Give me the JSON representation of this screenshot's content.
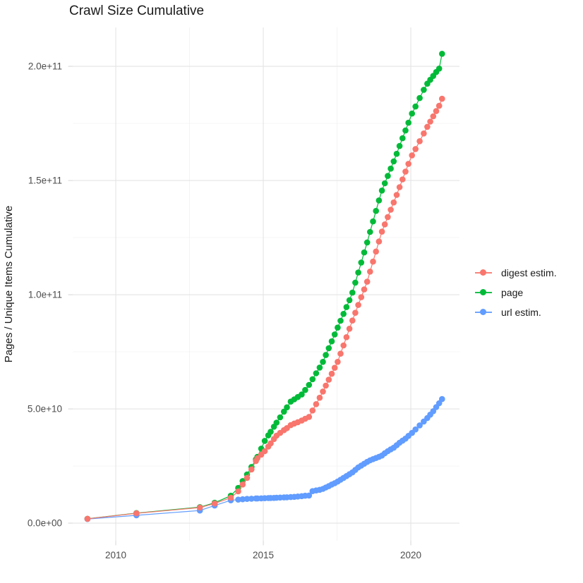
{
  "title": "Crawl Size Cumulative",
  "colors": {
    "digest": "#F8766D",
    "page": "#00BA38",
    "url": "#619CFF",
    "grid_major": "#E4E4E4",
    "grid_minor": "#F0F0F0",
    "tick_mark": "#D9D9D9",
    "tick_label": "#4D4D4D",
    "text": "#1A1A1A",
    "background": "#FFFFFF"
  },
  "legend": {
    "items": [
      {
        "label": "digest estim.",
        "color": "#F8766D"
      },
      {
        "label": "page",
        "color": "#00BA38"
      },
      {
        "label": "url estim.",
        "color": "#619CFF"
      }
    ]
  },
  "chart_data": {
    "type": "line",
    "title": "Crawl Size Cumulative",
    "xlabel": "",
    "ylabel": "Pages / Unique Items Cumulative",
    "y_unit_multiplier": 1000000000.0,
    "xlim": [
      2008.54,
      2021.65
    ],
    "ylim_billions": [
      -7.7,
      217.0
    ],
    "grid": true,
    "legend_position": "right",
    "x_ticks": {
      "values": [
        2010,
        2015,
        2020
      ],
      "labels": [
        "2010",
        "2015",
        "2020"
      ]
    },
    "y_ticks": {
      "values": [
        0,
        50,
        100,
        150,
        200
      ],
      "labels": [
        "0.0e+00",
        "5.0e+10",
        "1.0e+11",
        "1.5e+11",
        "2.0e+11"
      ]
    },
    "x_minor": [
      2012.5,
      2017.5
    ],
    "y_minor": [
      25,
      75,
      125,
      175
    ],
    "x": [
      2009.04,
      2010.7,
      2012.85,
      2013.35,
      2013.9,
      2014.15,
      2014.3,
      2014.45,
      2014.6,
      2014.75,
      2014.8,
      2014.93,
      2015.05,
      2015.17,
      2015.25,
      2015.36,
      2015.45,
      2015.57,
      2015.7,
      2015.8,
      2015.93,
      2016.05,
      2016.17,
      2016.3,
      2016.42,
      2016.55,
      2016.67,
      2016.79,
      2016.91,
      2017.02,
      2017.12,
      2017.22,
      2017.32,
      2017.42,
      2017.52,
      2017.62,
      2017.72,
      2017.82,
      2017.92,
      2018.02,
      2018.12,
      2018.22,
      2018.32,
      2018.42,
      2018.52,
      2018.62,
      2018.72,
      2018.82,
      2018.92,
      2019.02,
      2019.12,
      2019.22,
      2019.32,
      2019.42,
      2019.52,
      2019.62,
      2019.72,
      2019.82,
      2019.92,
      2020.04,
      2020.16,
      2020.3,
      2020.44,
      2020.56,
      2020.66,
      2020.76,
      2020.86,
      2020.96,
      2021.06
    ],
    "series": [
      {
        "name": "digest estim.",
        "color": "#F8766D",
        "values_billions": [
          1.9,
          4.3,
          6.8,
          8.6,
          11.1,
          13.9,
          16.9,
          19.8,
          23.5,
          27.2,
          28.4,
          30.0,
          31.5,
          33.5,
          34.9,
          36.8,
          38.3,
          39.5,
          40.7,
          41.6,
          42.9,
          43.6,
          44.2,
          44.9,
          45.7,
          46.5,
          49.3,
          52.1,
          54.9,
          57.6,
          60.2,
          62.8,
          65.4,
          68.0,
          70.6,
          74.2,
          77.8,
          81.4,
          85.1,
          88.7,
          92.1,
          95.5,
          98.9,
          102.3,
          105.7,
          110.1,
          114.5,
          118.9,
          123.3,
          127.6,
          130.8,
          134.0,
          137.2,
          140.4,
          143.7,
          147.1,
          150.5,
          153.9,
          157.3,
          161.0,
          163.8,
          167.2,
          170.6,
          173.5,
          175.8,
          178.1,
          180.4,
          182.7,
          185.8
        ]
      },
      {
        "name": "page",
        "color": "#00BA38",
        "values_billions": [
          1.9,
          4.4,
          7.0,
          8.9,
          12.0,
          15.4,
          18.4,
          21.3,
          24.6,
          27.9,
          29.0,
          32.6,
          36.0,
          38.4,
          40.0,
          42.2,
          44.0,
          46.3,
          48.8,
          50.7,
          53.2,
          54.2,
          55.2,
          56.3,
          58.3,
          60.5,
          63.0,
          65.6,
          68.1,
          70.6,
          73.6,
          76.6,
          79.6,
          82.6,
          85.6,
          88.6,
          91.6,
          94.6,
          97.6,
          100.9,
          105.3,
          109.7,
          114.1,
          118.5,
          122.9,
          127.5,
          132.1,
          136.7,
          141.3,
          145.6,
          148.8,
          152.0,
          155.2,
          158.4,
          161.7,
          165.1,
          168.5,
          171.9,
          175.3,
          179.3,
          182.4,
          186.1,
          189.7,
          192.4,
          194.1,
          195.8,
          197.5,
          199.0,
          205.5
        ]
      },
      {
        "name": "url estim.",
        "color": "#619CFF",
        "values_billions": [
          1.8,
          3.4,
          5.5,
          7.7,
          10.0,
          10.3,
          10.45,
          10.6,
          10.7,
          10.8,
          10.8,
          10.85,
          10.9,
          10.96,
          11.0,
          11.05,
          11.1,
          11.2,
          11.25,
          11.3,
          11.4,
          11.5,
          11.65,
          11.8,
          12.0,
          12.1,
          14.0,
          14.3,
          14.6,
          15.0,
          15.6,
          16.2,
          16.9,
          17.5,
          18.2,
          19.0,
          19.8,
          20.6,
          21.4,
          22.2,
          23.3,
          24.4,
          25.2,
          26.0,
          26.8,
          27.5,
          28.0,
          28.5,
          29.0,
          29.6,
          30.6,
          31.5,
          32.3,
          33.0,
          34.1,
          35.2,
          36.1,
          37.0,
          38.2,
          39.5,
          41.0,
          42.8,
          44.5,
          46.0,
          47.5,
          49.0,
          50.8,
          52.5,
          54.3
        ]
      }
    ],
    "draw_order": [
      "page",
      "url estim.",
      "digest estim."
    ]
  }
}
